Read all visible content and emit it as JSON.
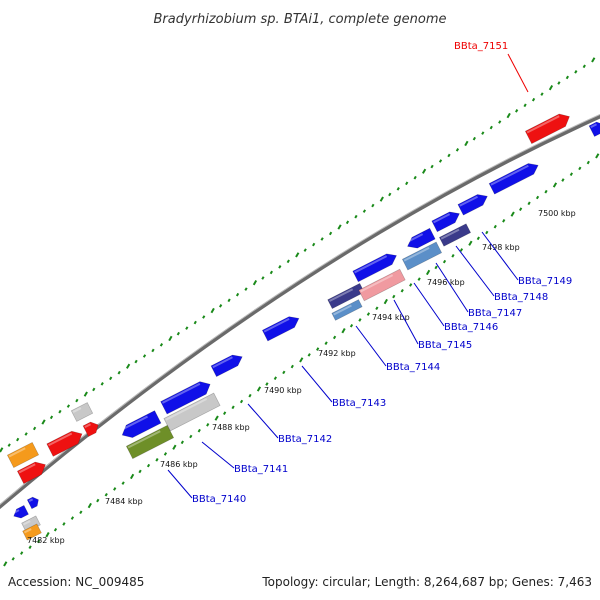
{
  "title": "Bradyrhizobium sp. BTAi1, complete genome",
  "footer": {
    "accession": "Accession: NC_009485",
    "stats": "Topology: circular; Length: 8,264,687 bp; Genes: 7,463"
  },
  "colors": {
    "forward": "#1010e8",
    "reverse": "#1010e8",
    "highlight": "#ee1111",
    "rna": "#f59a1c",
    "pseudo": "#c8c8c8",
    "olive": "#6e8f28",
    "pink": "#f09aa0",
    "steel": "#5b8fc8",
    "navy": "#3a3a8a",
    "backbone": "#888888",
    "tick": "#1a8a1a",
    "label_link": "#0000cc",
    "label_highlight": "#ee0000"
  },
  "ticks": [
    "7482 kbp",
    "7484 kbp",
    "7486 kbp",
    "7488 kbp",
    "7490 kbp",
    "7492 kbp",
    "7494 kbp",
    "7496 kbp",
    "7498 kbp",
    "7500 kbp"
  ],
  "gene_labels": [
    {
      "name": "BBta_7140",
      "color": "label_link"
    },
    {
      "name": "BBta_7141",
      "color": "label_link"
    },
    {
      "name": "BBta_7142",
      "color": "label_link"
    },
    {
      "name": "BBta_7143",
      "color": "label_link"
    },
    {
      "name": "BBta_7144",
      "color": "label_link"
    },
    {
      "name": "BBta_7145",
      "color": "label_link"
    },
    {
      "name": "BBta_7146",
      "color": "label_link"
    },
    {
      "name": "BBta_7147",
      "color": "label_link"
    },
    {
      "name": "BBta_7148",
      "color": "label_link"
    },
    {
      "name": "BBta_7149",
      "color": "label_link"
    },
    {
      "name": "BBta_7151",
      "color": "label_highlight"
    }
  ]
}
